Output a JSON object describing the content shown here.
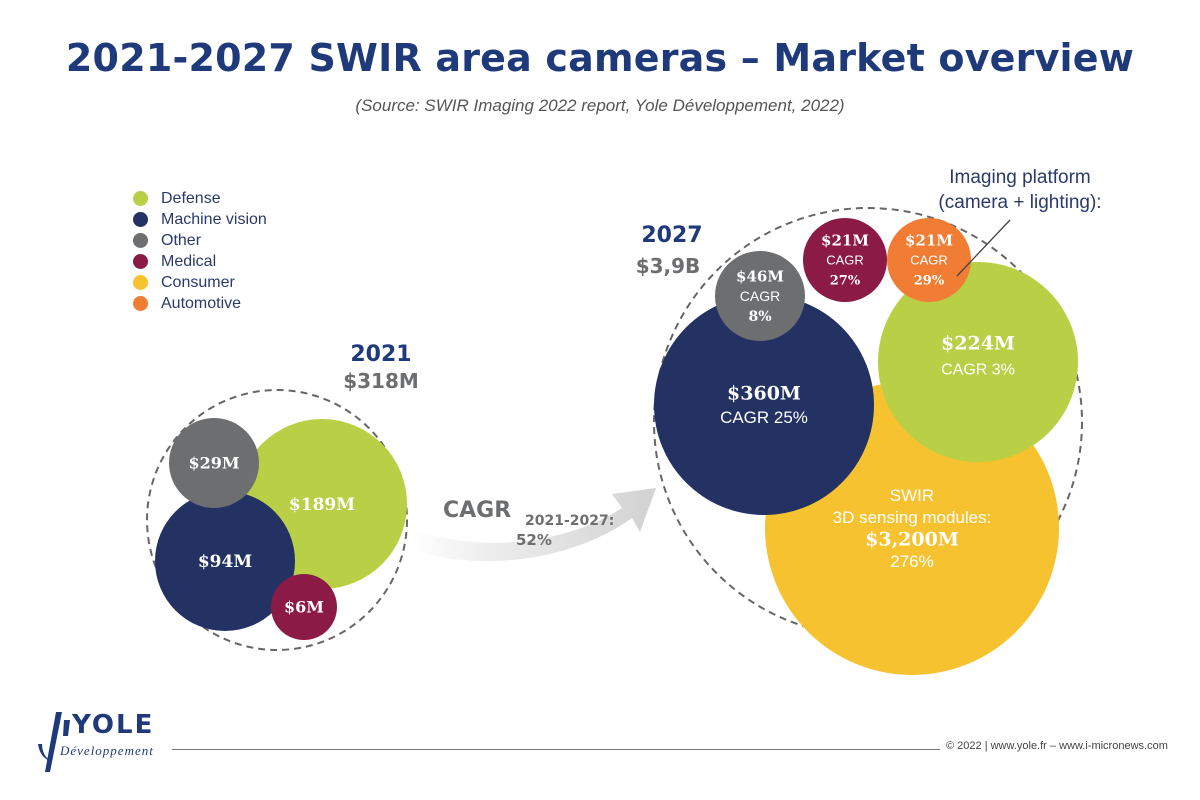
{
  "title": "2021-2027 SWIR area cameras – Market overview",
  "subtitle": "(Source: SWIR Imaging 2022 report, Yole Développement, 2022)",
  "legend": [
    {
      "label": "Defense",
      "color": "#b9cf45"
    },
    {
      "label": "Machine vision",
      "color": "#233263"
    },
    {
      "label": "Other",
      "color": "#6d6e70"
    },
    {
      "label": "Medical",
      "color": "#8b1a46"
    },
    {
      "label": "Consumer",
      "color": "#f7c22f"
    },
    {
      "label": "Automotive",
      "color": "#f07d33"
    }
  ],
  "chart_data": {
    "type": "bubble",
    "groups": [
      {
        "year": "2021",
        "total": "$318M",
        "bubbles": [
          {
            "segment": "Defense",
            "value_label": "$189M",
            "value_musd": 189
          },
          {
            "segment": "Machine vision",
            "value_label": "$94M",
            "value_musd": 94
          },
          {
            "segment": "Other",
            "value_label": "$29M",
            "value_musd": 29
          },
          {
            "segment": "Medical",
            "value_label": "$6M",
            "value_musd": 6
          }
        ]
      },
      {
        "year": "2027",
        "total": "$3,9B",
        "bubbles": [
          {
            "segment": "Consumer",
            "lines": [
              "SWIR",
              "3D sensing modules:",
              "$3,200M",
              "276%"
            ],
            "value_musd": 3200
          },
          {
            "segment": "Machine vision",
            "lines": [
              "$360M",
              "CAGR 25%"
            ],
            "value_musd": 360
          },
          {
            "segment": "Defense",
            "lines": [
              "$224M",
              "CAGR 3%"
            ],
            "value_musd": 224
          },
          {
            "segment": "Other",
            "lines": [
              "$46M",
              "CAGR",
              "8%"
            ],
            "value_musd": 46
          },
          {
            "segment": "Medical",
            "lines": [
              "$21M",
              "CAGR",
              "27%"
            ],
            "value_musd": 21
          },
          {
            "segment": "Automotive",
            "lines": [
              "$21M",
              "CAGR",
              "29%"
            ],
            "value_musd": 21
          }
        ]
      }
    ],
    "arrow": {
      "label": "CAGR",
      "period": "2021-2027",
      "suffix": ":",
      "value": "52%"
    },
    "annotation": {
      "lines": [
        "Imaging platform",
        "(camera + lighting):"
      ],
      "target": "Automotive"
    }
  },
  "footer": {
    "logo_name": "YOLE",
    "logo_sub": "Développement",
    "copyright": "© 2022 | www.yole.fr – www.i-micronews.com"
  }
}
